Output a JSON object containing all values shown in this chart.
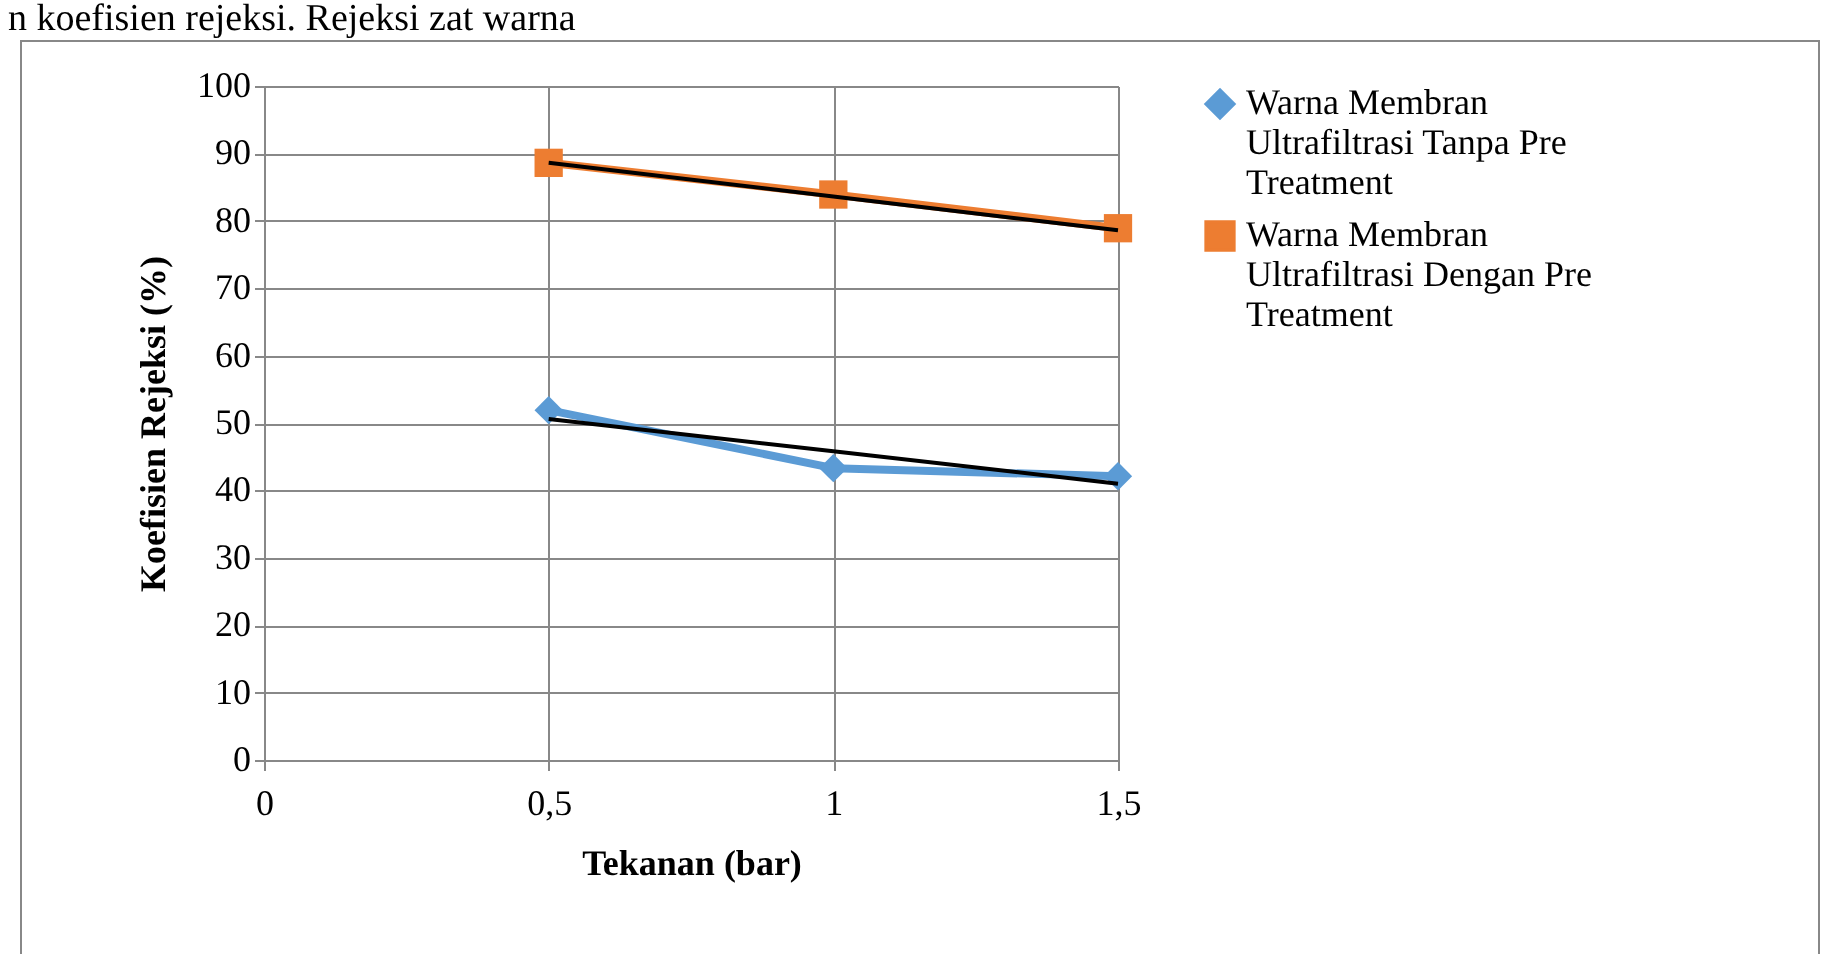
{
  "chart_data": {
    "type": "line",
    "annotations": [
      "n koefisien rejeksi. Rejeksi zat warna"
    ],
    "xlabel": "Tekanan (bar)",
    "ylabel": "Koefisien Rejeksi (%)",
    "x": [
      0.5,
      1,
      1.5
    ],
    "series": [
      {
        "name": "Warna Membran Ultrafiltrasi Tanpa Pre Treatment",
        "color": "#5b9bd5",
        "marker": "diamond",
        "values": [
          51.9,
          43.3,
          42.1
        ]
      },
      {
        "name": "Warna Membran Ultrafiltrasi Dengan Pre Treatment",
        "color": "#ed7d31",
        "marker": "square",
        "values": [
          88.6,
          83.9,
          78.9
        ]
      },
      {
        "type": "line",
        "color": "#000000",
        "marker": "none",
        "values": [
          50.6,
          45.8,
          41.0
        ]
      },
      {
        "type": "line",
        "color": "#000000",
        "marker": "none",
        "values": [
          88.6,
          83.6,
          78.6
        ]
      }
    ],
    "xlim": [
      0,
      1.5
    ],
    "xticks": [
      0,
      {
        "value": 0.5,
        "label": "0,5"
      },
      1,
      {
        "value": 1.5,
        "label": "1,5"
      }
    ],
    "ylim": [
      0,
      100
    ],
    "yticks": [
      0,
      10,
      20,
      30,
      40,
      50,
      60,
      70,
      80,
      90,
      100
    ],
    "grid": true,
    "legend": "right"
  }
}
